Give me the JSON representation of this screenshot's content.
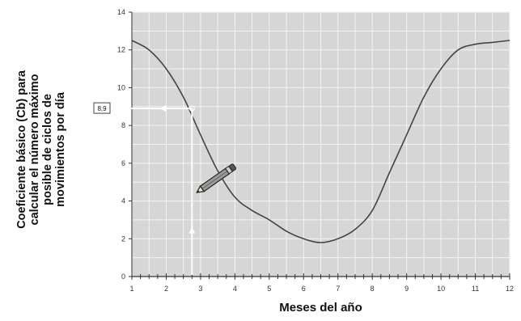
{
  "chart_data": {
    "type": "line",
    "title": "",
    "ylabel_lines": [
      [
        "Coeficiente básico (",
        "Cb",
        ") para"
      ],
      [
        "calcular el número máximo"
      ],
      [
        "posible de ciclos de"
      ],
      [
        "movimientos por día"
      ]
    ],
    "xlabel": "Meses del año",
    "xlim": [
      1,
      12
    ],
    "ylim": [
      0,
      14
    ],
    "x_ticks": [
      1,
      2,
      3,
      4,
      5,
      6,
      7,
      8,
      9,
      10,
      11,
      12
    ],
    "y_ticks": [
      0,
      2,
      4,
      6,
      8,
      10,
      12,
      14
    ],
    "grid": true,
    "series": [
      {
        "x": [
          1,
          1.5,
          2,
          2.5,
          3,
          3.5,
          4,
          4.5,
          5,
          5.5,
          6,
          6.5,
          7,
          7.5,
          8,
          8.5,
          9,
          9.5,
          10,
          10.5,
          11,
          11.5,
          12
        ],
        "y": [
          12.5,
          12.0,
          11.0,
          9.5,
          7.5,
          5.6,
          4.2,
          3.5,
          3.0,
          2.4,
          2.0,
          1.8,
          2.0,
          2.5,
          3.5,
          5.5,
          7.5,
          9.5,
          11.0,
          12.0,
          12.3,
          12.4,
          12.5
        ]
      }
    ],
    "annotation": {
      "readout_label": "8,9",
      "point_x": 2.75,
      "point_y": 8.9
    },
    "colors": {
      "plot_bg": "#d6d6d6",
      "grid": "#f4f4f4",
      "curve": "#444444",
      "guide": "#ffffff"
    }
  }
}
